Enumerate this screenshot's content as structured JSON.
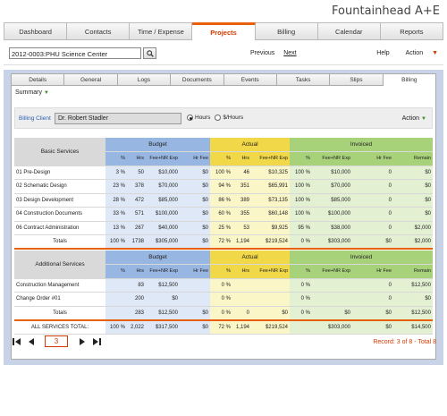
{
  "app": {
    "title": "Fountainhead A+E"
  },
  "nav": [
    "Dashboard",
    "Contacts",
    "Time / Expense",
    "Projects",
    "Billing",
    "Calendar",
    "Reports"
  ],
  "project": {
    "value": "2012-0003:PHU Science Center",
    "search_icon": "search-icon"
  },
  "pager_top": {
    "previous": "Previous",
    "next": "Next"
  },
  "help": "Help",
  "action": "Action",
  "subtabs": [
    "Details",
    "General",
    "Logs",
    "Documents",
    "Events",
    "Tasks",
    "Slips",
    "Billing"
  ],
  "summary": "Summary",
  "billing_client": {
    "label": "Billing Client",
    "value": "Dr. Robert Stadler"
  },
  "radios": {
    "hours": "Hours",
    "dollars": "$/Hours"
  },
  "groups": {
    "budget": "Budget",
    "actual": "Actual",
    "invoiced": "Invoiced"
  },
  "cols": {
    "pct": "%",
    "hrs": "Hrs",
    "fee": "Fee+NR Exp",
    "hrfee": "Hr Fee",
    "remain": "Remain"
  },
  "basic": {
    "title": "Basic Services",
    "rows": [
      {
        "name": "01 Pre-Design",
        "b": [
          "3 %",
          "50",
          "$10,000",
          "$0"
        ],
        "a": [
          "100 %",
          "46",
          "$10,325"
        ],
        "i": [
          "100 %",
          "$10,000",
          "0",
          "$0"
        ]
      },
      {
        "name": "02 Schematic Design",
        "b": [
          "23 %",
          "378",
          "$70,000",
          "$0"
        ],
        "a": [
          "94 %",
          "351",
          "$65,991"
        ],
        "i": [
          "100 %",
          "$70,000",
          "0",
          "$0"
        ]
      },
      {
        "name": "03 Design Development",
        "b": [
          "28 %",
          "472",
          "$85,000",
          "$0"
        ],
        "a": [
          "86 %",
          "389",
          "$73,135"
        ],
        "i": [
          "100 %",
          "$85,000",
          "0",
          "$0"
        ]
      },
      {
        "name": "04 Construction Documents",
        "b": [
          "33 %",
          "571",
          "$100,000",
          "$0"
        ],
        "a": [
          "60 %",
          "355",
          "$60,148"
        ],
        "i": [
          "100 %",
          "$100,000",
          "0",
          "$0"
        ]
      },
      {
        "name": "06 Contract Administration",
        "b": [
          "13 %",
          "267",
          "$40,000",
          "$0"
        ],
        "a": [
          "25 %",
          "53",
          "$9,925"
        ],
        "i": [
          "95 %",
          "$38,000",
          "0",
          "$2,000"
        ]
      }
    ],
    "total": {
      "name": "Totals",
      "b": [
        "100 %",
        "1738",
        "$305,000",
        "$0"
      ],
      "a": [
        "72 %",
        "1,194",
        "$219,524"
      ],
      "i": [
        "0 %",
        "$303,000",
        "$0",
        "$2,000"
      ]
    }
  },
  "additional": {
    "title": "Additional Services",
    "rows": [
      {
        "name": "Construction Management",
        "b": [
          "",
          "83",
          "$12,500",
          ""
        ],
        "a": [
          "0 %",
          "",
          ""
        ],
        "i": [
          "0 %",
          "",
          "0",
          "$12,500"
        ]
      },
      {
        "name": "Change Order #01",
        "b": [
          "",
          "200",
          "$0",
          ""
        ],
        "a": [
          "0 %",
          "",
          ""
        ],
        "i": [
          "0 %",
          "",
          "0",
          "$0"
        ]
      }
    ],
    "total": {
      "name": "Totals",
      "b": [
        "",
        "283",
        "$12,500",
        "$0"
      ],
      "a": [
        "0 %",
        "0",
        "$0"
      ],
      "i": [
        "0 %",
        "$0",
        "$0",
        "$12,500"
      ]
    }
  },
  "grand": {
    "name": "ALL SERVICES TOTAL:",
    "b": [
      "100 %",
      "2,022",
      "$317,500",
      "$0"
    ],
    "a": [
      "72 %",
      "1,194",
      "$219,524"
    ],
    "i": [
      "",
      "$303,000",
      "$0",
      "$14,500"
    ]
  },
  "pager": {
    "page": "3",
    "record": "Record: 3 of 8 - Total 8"
  }
}
